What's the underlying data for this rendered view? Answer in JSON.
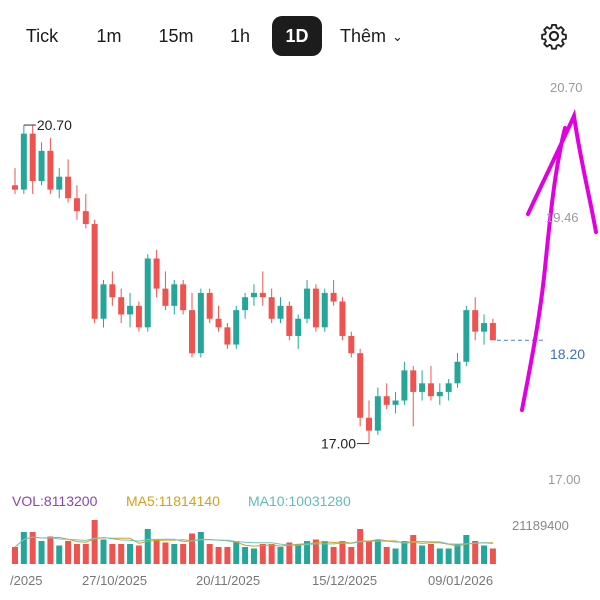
{
  "toolbar": {
    "tabs": [
      {
        "label": "Tick"
      },
      {
        "label": "1m"
      },
      {
        "label": "15m"
      },
      {
        "label": "1h"
      },
      {
        "label": "1D",
        "active": true
      }
    ],
    "more_label": "Thêm",
    "settings_icon": "gear-icon"
  },
  "price_axis": {
    "levels": [
      "20.70",
      "19.46",
      "17.00"
    ],
    "current_price": "18.20"
  },
  "markers": {
    "high_label": "20.70",
    "low_label": "17.00"
  },
  "volume": {
    "vol_label": "VOL:8113200",
    "ma5_label": "MA5:11814140",
    "ma10_label": "MA10:10031280",
    "max_label": "21189400"
  },
  "dates": [
    "/2025",
    "27/10/2025",
    "20/11/2025",
    "15/12/2025",
    "09/01/2026"
  ],
  "colors": {
    "up": "#26a69a",
    "down": "#ef5350",
    "vol_purple": "#8e44ad",
    "ma5": "#d4a017",
    "ma10": "#6cc5c5",
    "annotation": "#e000e0"
  },
  "chart_data": {
    "type": "candlestick",
    "ylim": [
      16.6,
      21.2
    ],
    "current_price": 18.2,
    "candles": [
      [
        20.0,
        20.2,
        19.9,
        19.95
      ],
      [
        19.95,
        20.7,
        19.9,
        20.6
      ],
      [
        20.6,
        20.7,
        19.9,
        20.05
      ],
      [
        20.05,
        20.5,
        20.0,
        20.4
      ],
      [
        20.4,
        20.55,
        19.9,
        19.95
      ],
      [
        19.95,
        20.2,
        19.85,
        20.1
      ],
      [
        20.1,
        20.3,
        19.8,
        19.85
      ],
      [
        19.85,
        20.0,
        19.6,
        19.7
      ],
      [
        19.7,
        19.9,
        19.5,
        19.55
      ],
      [
        19.55,
        19.6,
        18.4,
        18.45
      ],
      [
        18.45,
        18.9,
        18.35,
        18.85
      ],
      [
        18.85,
        19.0,
        18.6,
        18.7
      ],
      [
        18.7,
        18.8,
        18.4,
        18.5
      ],
      [
        18.5,
        18.75,
        18.35,
        18.6
      ],
      [
        18.6,
        18.65,
        18.3,
        18.35
      ],
      [
        18.35,
        19.2,
        18.3,
        19.15
      ],
      [
        19.15,
        19.25,
        18.7,
        18.8
      ],
      [
        18.8,
        19.0,
        18.55,
        18.6
      ],
      [
        18.6,
        18.9,
        18.5,
        18.85
      ],
      [
        18.85,
        18.9,
        18.5,
        18.55
      ],
      [
        18.55,
        18.75,
        18.0,
        18.05
      ],
      [
        18.05,
        18.8,
        18.0,
        18.75
      ],
      [
        18.75,
        18.8,
        18.4,
        18.45
      ],
      [
        18.45,
        18.6,
        18.3,
        18.35
      ],
      [
        18.35,
        18.4,
        18.1,
        18.15
      ],
      [
        18.15,
        18.6,
        18.1,
        18.55
      ],
      [
        18.55,
        18.75,
        18.45,
        18.7
      ],
      [
        18.7,
        18.85,
        18.6,
        18.75
      ],
      [
        18.75,
        19.0,
        18.6,
        18.7
      ],
      [
        18.7,
        18.8,
        18.4,
        18.45
      ],
      [
        18.45,
        18.7,
        18.4,
        18.6
      ],
      [
        18.6,
        18.65,
        18.2,
        18.25
      ],
      [
        18.25,
        18.5,
        18.1,
        18.45
      ],
      [
        18.45,
        18.9,
        18.4,
        18.8
      ],
      [
        18.8,
        18.85,
        18.3,
        18.35
      ],
      [
        18.35,
        18.8,
        18.3,
        18.75
      ],
      [
        18.75,
        18.9,
        18.6,
        18.65
      ],
      [
        18.65,
        18.7,
        18.2,
        18.25
      ],
      [
        18.25,
        18.3,
        18.0,
        18.05
      ],
      [
        18.05,
        18.1,
        17.2,
        17.3
      ],
      [
        17.3,
        17.5,
        17.0,
        17.15
      ],
      [
        17.15,
        17.65,
        17.1,
        17.55
      ],
      [
        17.55,
        17.7,
        17.4,
        17.45
      ],
      [
        17.45,
        17.6,
        17.35,
        17.5
      ],
      [
        17.5,
        17.95,
        17.45,
        17.85
      ],
      [
        17.85,
        17.9,
        17.2,
        17.6
      ],
      [
        17.6,
        17.85,
        17.5,
        17.7
      ],
      [
        17.7,
        17.9,
        17.5,
        17.55
      ],
      [
        17.55,
        17.7,
        17.45,
        17.6
      ],
      [
        17.6,
        17.75,
        17.5,
        17.7
      ],
      [
        17.7,
        18.05,
        17.65,
        17.95
      ],
      [
        17.95,
        18.6,
        17.9,
        18.55
      ],
      [
        18.55,
        18.7,
        18.2,
        18.3
      ],
      [
        18.3,
        18.5,
        18.15,
        18.4
      ],
      [
        18.4,
        18.45,
        18.2,
        18.2
      ]
    ]
  }
}
